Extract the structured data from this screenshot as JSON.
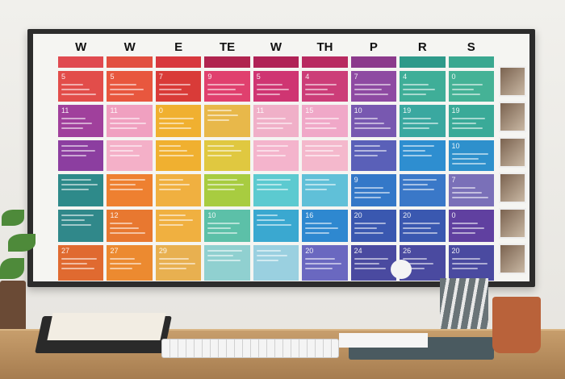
{
  "calendar": {
    "day_headers": [
      "W",
      "W",
      "E",
      "TE",
      "W",
      "TH",
      "P",
      "R",
      "S"
    ],
    "header_colors": [
      "#e04a50",
      "#e25040",
      "#d8383e",
      "#b0244f",
      "#b02256",
      "#b82a60",
      "#8c3a8c",
      "#2e9a8a",
      "#3aa890"
    ],
    "rows": [
      {
        "numbers": [
          "5",
          "5",
          "7",
          "9",
          "5",
          "4",
          "7",
          "4",
          "0"
        ],
        "colors": [
          "#e24d4a",
          "#e8573e",
          "#d93b38",
          "#e0406e",
          "#cf3572",
          "#cc3d78",
          "#8e4aa2",
          "#3fae98",
          "#45b296"
        ]
      },
      {
        "numbers": [
          "11",
          "11",
          "0",
          "",
          "11",
          "15",
          "10",
          "19",
          "19"
        ],
        "colors": [
          "#a0409c",
          "#f0a0c0",
          "#f0b030",
          "#e8b84a",
          "#f0b0c8",
          "#f0a8c8",
          "#7858b0",
          "#3aa8a0",
          "#3aaa98"
        ]
      },
      {
        "numbers": [
          "",
          "",
          "",
          "",
          "",
          "",
          "",
          "",
          "10"
        ],
        "colors": [
          "#8c3ea0",
          "#f4b0c8",
          "#f0b030",
          "#e0c840",
          "#f4b4cc",
          "#f4b8cc",
          "#5a60b8",
          "#2e8ed0",
          "#2e90cc"
        ]
      },
      {
        "numbers": [
          "",
          "",
          "",
          "",
          "",
          "",
          "9",
          "",
          "7"
        ],
        "colors": [
          "#2e8a8a",
          "#ee8030",
          "#f0b040",
          "#a8cc40",
          "#5ccad0",
          "#60c0d8",
          "#3478c8",
          "#3a78c8",
          "#7a70b8"
        ]
      },
      {
        "numbers": [
          "",
          "12",
          "",
          "10",
          "",
          "16",
          "20",
          "20",
          "0"
        ],
        "colors": [
          "#30888a",
          "#e87830",
          "#f0b040",
          "#5cc0a8",
          "#3aa8d0",
          "#2e88d0",
          "#3a58b0",
          "#3a58b0",
          "#6040a0"
        ]
      },
      {
        "numbers": [
          "27",
          "27",
          "29",
          "",
          "",
          "20",
          "24",
          "26",
          "20"
        ],
        "colors": [
          "#e06a30",
          "#ec8a30",
          "#e8b050",
          "#90d0d0",
          "#9ad0e0",
          "#6a68c0",
          "#4a4aa0",
          "#4a4aa0",
          "#4a4aa0"
        ]
      }
    ]
  }
}
